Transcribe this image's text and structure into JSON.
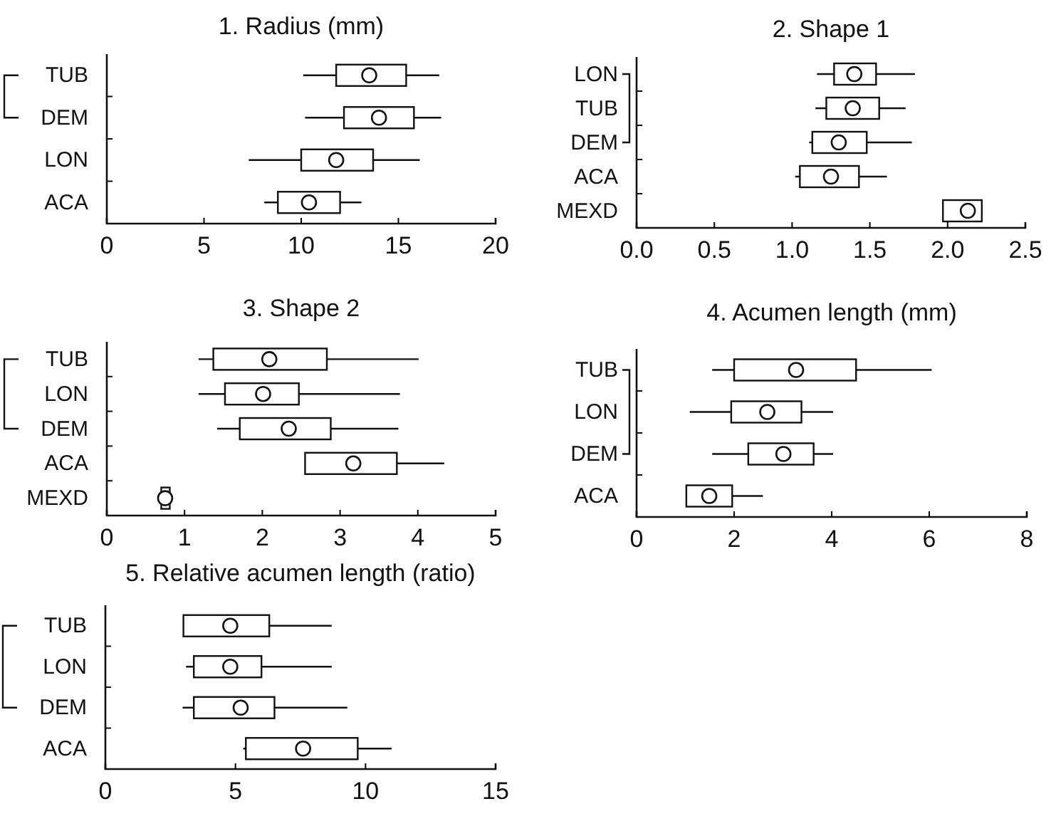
{
  "chart_data": [
    {
      "type": "box",
      "orientation": "horizontal",
      "title": "1. Radius (mm)",
      "categories": [
        "TUB",
        "DEM",
        "LON",
        "ACA"
      ],
      "xlim": [
        0,
        20
      ],
      "xticks": [
        0,
        5,
        10,
        15,
        20
      ],
      "boxes": [
        {
          "low": 10.1,
          "q1": 11.8,
          "median": 13.5,
          "q3": 15.4,
          "high": 17.1
        },
        {
          "low": 10.2,
          "q1": 12.2,
          "median": 14.0,
          "q3": 15.8,
          "high": 17.2
        },
        {
          "low": 7.3,
          "q1": 10.0,
          "median": 11.8,
          "q3": 13.7,
          "high": 16.1
        },
        {
          "low": 8.1,
          "q1": 8.8,
          "median": 10.4,
          "q3": 12.0,
          "high": 13.1
        }
      ]
    },
    {
      "type": "box",
      "orientation": "horizontal",
      "title": "2. Shape 1",
      "categories": [
        "LON",
        "TUB",
        "DEM",
        "ACA",
        "MEXD"
      ],
      "xlim": [
        0,
        2.5
      ],
      "xticks": [
        {
          "value": 0,
          "label": "0.0"
        },
        0.5,
        {
          "value": 1,
          "label": "1.0"
        },
        1.5,
        {
          "value": 2,
          "label": "2.0"
        },
        2.5
      ],
      "boxes": [
        {
          "low": 1.16,
          "q1": 1.27,
          "median": 1.4,
          "q3": 1.54,
          "high": 1.79
        },
        {
          "low": 1.15,
          "q1": 1.22,
          "median": 1.39,
          "q3": 1.56,
          "high": 1.73
        },
        {
          "low": 1.11,
          "q1": 1.13,
          "median": 1.3,
          "q3": 1.48,
          "high": 1.77
        },
        {
          "low": 1.02,
          "q1": 1.05,
          "median": 1.25,
          "q3": 1.43,
          "high": 1.61
        },
        {
          "low": 1.97,
          "q1": 1.97,
          "median": 2.13,
          "q3": 2.22,
          "high": 2.22
        }
      ]
    },
    {
      "type": "box",
      "orientation": "horizontal",
      "title": "3. Shape 2",
      "categories": [
        "TUB",
        "LON",
        "DEM",
        "ACA",
        "MEXD"
      ],
      "xlim": [
        0,
        5
      ],
      "xticks": [
        0,
        1,
        2,
        3,
        4,
        5
      ],
      "boxes": [
        {
          "low": 1.18,
          "q1": 1.37,
          "median": 2.09,
          "q3": 2.83,
          "high": 4.01
        },
        {
          "low": 1.18,
          "q1": 1.52,
          "median": 2.01,
          "q3": 2.47,
          "high": 3.77
        },
        {
          "low": 1.42,
          "q1": 1.71,
          "median": 2.34,
          "q3": 2.88,
          "high": 3.75
        },
        {
          "low": 2.55,
          "q1": 2.55,
          "median": 3.17,
          "q3": 3.73,
          "high": 4.34
        },
        {
          "low": 0.7,
          "q1": 0.7,
          "median": 0.75,
          "q3": 0.81,
          "high": 0.81
        }
      ]
    },
    {
      "type": "box",
      "orientation": "horizontal",
      "title": "4. Acumen length (mm)",
      "categories": [
        "TUB",
        "LON",
        "DEM",
        "ACA"
      ],
      "xlim": [
        0,
        8
      ],
      "xticks": [
        0,
        2,
        4,
        6,
        8
      ],
      "boxes": [
        {
          "low": 1.55,
          "q1": 2.0,
          "median": 3.27,
          "q3": 4.5,
          "high": 6.05
        },
        {
          "low": 1.09,
          "q1": 1.94,
          "median": 2.68,
          "q3": 3.38,
          "high": 4.03
        },
        {
          "low": 1.55,
          "q1": 2.29,
          "median": 3.01,
          "q3": 3.63,
          "high": 4.03
        },
        {
          "low": 1.02,
          "q1": 1.02,
          "median": 1.49,
          "q3": 1.96,
          "high": 2.59
        }
      ]
    },
    {
      "type": "box",
      "orientation": "horizontal",
      "title": "5. Relative acumen length (ratio)",
      "categories": [
        "TUB",
        "LON",
        "DEM",
        "ACA"
      ],
      "xlim": [
        0,
        15
      ],
      "xticks": [
        0,
        5,
        10,
        15
      ],
      "boxes": [
        {
          "low": 3.0,
          "q1": 3.0,
          "median": 4.8,
          "q3": 6.3,
          "high": 8.7
        },
        {
          "low": 3.1,
          "q1": 3.4,
          "median": 4.8,
          "q3": 6.0,
          "high": 8.7
        },
        {
          "low": 2.97,
          "q1": 3.4,
          "median": 5.2,
          "q3": 6.5,
          "high": 9.3
        },
        {
          "low": 5.3,
          "q1": 5.4,
          "median": 7.6,
          "q3": 9.7,
          "high": 11.0
        }
      ]
    }
  ]
}
